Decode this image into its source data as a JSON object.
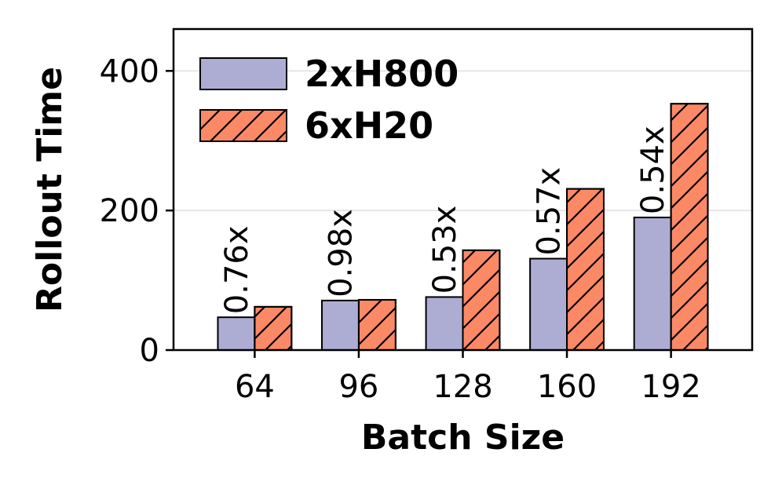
{
  "chart_data": {
    "type": "bar",
    "xlabel": "Batch Size",
    "ylabel": "Rollout Time",
    "categories": [
      "64",
      "96",
      "128",
      "160",
      "192"
    ],
    "series": [
      {
        "name": "2xH800",
        "values": [
          47,
          71,
          76,
          131,
          190
        ],
        "color": "#adadd4",
        "hatch": false
      },
      {
        "name": "6xH20",
        "values": [
          62,
          72,
          143,
          231,
          353
        ],
        "color": "#fc8966",
        "hatch": true
      }
    ],
    "ratio_labels": [
      "0.76x",
      "0.98x",
      "0.53x",
      "0.57x",
      "0.54x"
    ],
    "ylim": [
      0,
      460
    ],
    "yticks": [
      0,
      200,
      400
    ],
    "grid": true,
    "legend_position": "top-left"
  }
}
